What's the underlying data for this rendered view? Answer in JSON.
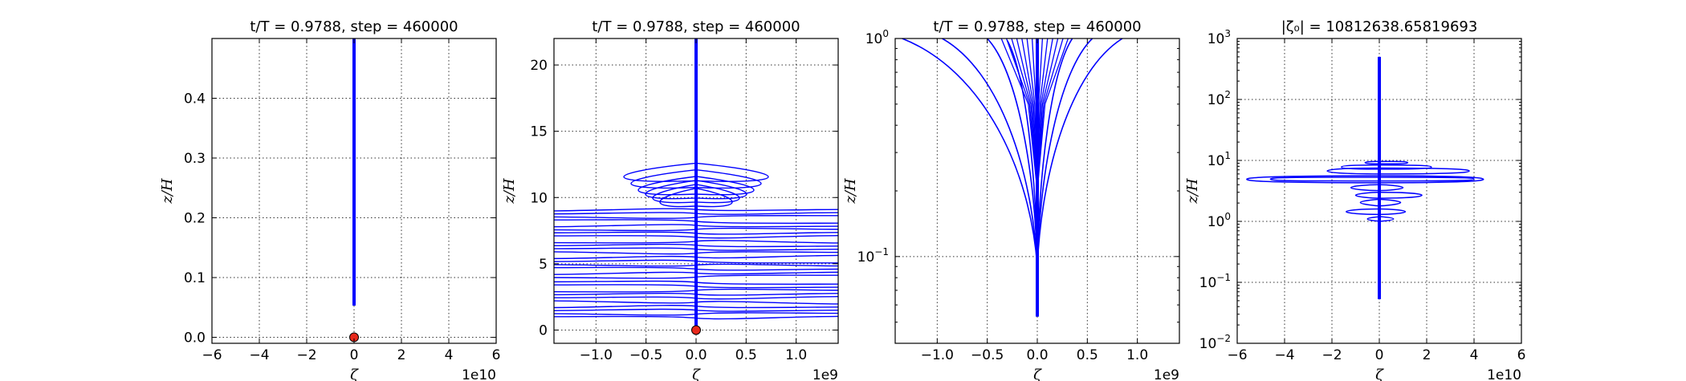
{
  "chart_data": [
    {
      "type": "line",
      "title": "t/T = 0.9788, step = 460000",
      "xlabel": "ζ",
      "ylabel": "z/H",
      "x_offset_text": "1e10",
      "xlim": [
        -6,
        6
      ],
      "ylim": [
        -0.01,
        0.5
      ],
      "xticks": [
        -6,
        -4,
        -2,
        0,
        2,
        4,
        6
      ],
      "xtick_labels": [
        "−6",
        "−4",
        "−2",
        "0",
        "2",
        "4",
        "6"
      ],
      "yticks": [
        0.0,
        0.1,
        0.2,
        0.3,
        0.4
      ],
      "ytick_labels": [
        "0.0",
        "0.1",
        "0.2",
        "0.3",
        "0.4"
      ],
      "grid": true,
      "series": [
        {
          "x": [
            0,
            0
          ],
          "y": [
            0.053,
            0.5
          ]
        }
      ],
      "markers": [
        {
          "x": 0,
          "y": 0.0,
          "color": "#e8291c"
        }
      ]
    },
    {
      "type": "line",
      "title": "t/T = 0.9788, step = 460000",
      "xlabel": "ζ",
      "ylabel": "z/H",
      "x_offset_text": "1e9",
      "xlim": [
        -1.42,
        1.42
      ],
      "ylim": [
        -1,
        22
      ],
      "xticks": [
        -1.0,
        -0.5,
        0.0,
        0.5,
        1.0
      ],
      "xtick_labels": [
        "−1.0",
        "−0.5",
        "0.0",
        "0.5",
        "1.0"
      ],
      "yticks": [
        0,
        5,
        10,
        15,
        20
      ],
      "ytick_labels": [
        "0",
        "5",
        "10",
        "15",
        "20"
      ],
      "grid": true,
      "profile": {
        "x0": 0,
        "y_top": 22,
        "y_bottom": 0.05
      },
      "spread_levels": [
        0.9,
        1.2,
        1.5,
        1.8,
        2.1,
        2.4,
        2.7,
        3.0,
        3.3,
        3.6,
        4.0,
        4.3,
        4.6,
        4.9,
        5.2,
        5.5,
        5.8,
        6.1,
        6.4,
        6.7,
        7.0,
        7.3,
        7.6,
        7.9,
        8.2,
        8.5,
        8.8,
        9.1
      ],
      "bump_levels": [
        9.6,
        9.9,
        10.2,
        10.5,
        11.0,
        11.5
      ],
      "markers": [
        {
          "x": 0,
          "y": 0.0,
          "color": "#e8291c"
        }
      ]
    },
    {
      "type": "line",
      "title": "t/T = 0.9788, step = 460000",
      "xlabel": "ζ",
      "ylabel": "z/H",
      "x_offset_text": "1e9",
      "xscale": "linear",
      "yscale": "log",
      "xlim": [
        -1.42,
        1.42
      ],
      "ylim": [
        0.04,
        1.0
      ],
      "xticks": [
        -1.0,
        -0.5,
        0.0,
        0.5,
        1.0
      ],
      "xtick_labels": [
        "−1.0",
        "−0.5",
        "0.0",
        "0.5",
        "1.0"
      ],
      "yticks": [
        0.1,
        1.0
      ],
      "ytick_labels": [
        {
          "base": "10",
          "exp": "−1"
        },
        {
          "base": "10",
          "exp": "0"
        }
      ],
      "grid": true,
      "profile": {
        "x0": 0,
        "y_top": 1.0,
        "y_bottom": 0.053
      },
      "branches": [
        {
          "x_top": -1.35,
          "y_top": 1.0
        },
        {
          "x_top": -0.95,
          "y_top": 1.0
        },
        {
          "x_top": -0.5,
          "y_top": 1.0
        },
        {
          "x_top": -0.3,
          "y_top": 0.98
        },
        {
          "x_top": 0.35,
          "y_top": 1.0
        },
        {
          "x_top": 0.55,
          "y_top": 1.0
        },
        {
          "x_top": 0.85,
          "y_top": 1.0
        }
      ]
    },
    {
      "type": "line",
      "title": "|ζ₀| = 10812638.65819693",
      "xlabel": "ζ",
      "ylabel": "z/H",
      "x_offset_text": "1e10",
      "xscale": "linear",
      "yscale": "log",
      "xlim": [
        -6,
        6
      ],
      "ylim": [
        0.01,
        1000
      ],
      "xticks": [
        -6,
        -4,
        -2,
        0,
        2,
        4,
        6
      ],
      "xtick_labels": [
        "−6",
        "−4",
        "−2",
        "0",
        "2",
        "4",
        "6"
      ],
      "yticks": [
        0.01,
        0.1,
        1,
        10,
        100,
        1000
      ],
      "ytick_labels": [
        {
          "base": "10",
          "exp": "−2"
        },
        {
          "base": "10",
          "exp": "−1"
        },
        {
          "base": "10",
          "exp": "0"
        },
        {
          "base": "10",
          "exp": "1"
        },
        {
          "base": "10",
          "exp": "2"
        },
        {
          "base": "10",
          "exp": "3"
        }
      ],
      "grid": true,
      "profile": {
        "x0": 0,
        "y_top": 500,
        "y_bottom": 0.053
      },
      "loops": [
        {
          "x_min": -5.6,
          "x_max": 4.4,
          "y_lo": 4.3,
          "y_hi": 5.6
        },
        {
          "x_min": -4.6,
          "x_max": 4.0,
          "y_lo": 4.6,
          "y_hi": 5.3
        },
        {
          "x_min": -2.2,
          "x_max": 3.8,
          "y_lo": 6.0,
          "y_hi": 7.5
        },
        {
          "x_min": -1.6,
          "x_max": 2.2,
          "y_lo": 7.2,
          "y_hi": 8.4
        },
        {
          "x_min": -1.2,
          "x_max": 1.0,
          "y_lo": 3.2,
          "y_hi": 4.0
        },
        {
          "x_min": -1.0,
          "x_max": 1.8,
          "y_lo": 2.4,
          "y_hi": 3.0
        },
        {
          "x_min": -0.8,
          "x_max": 0.9,
          "y_lo": 1.8,
          "y_hi": 2.3
        },
        {
          "x_min": -1.4,
          "x_max": 1.1,
          "y_lo": 1.3,
          "y_hi": 1.6
        },
        {
          "x_min": -0.5,
          "x_max": 0.6,
          "y_lo": 1.0,
          "y_hi": 1.2
        },
        {
          "x_min": -0.6,
          "x_max": 1.2,
          "y_lo": 8.8,
          "y_hi": 9.6
        }
      ]
    }
  ]
}
